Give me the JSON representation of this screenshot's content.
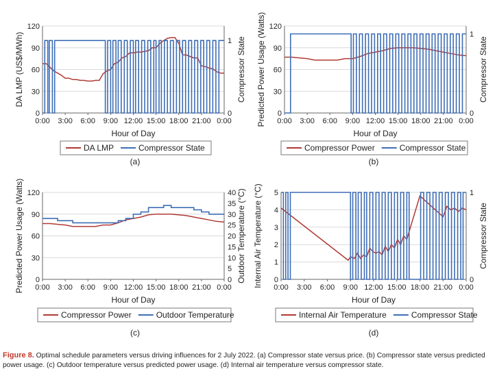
{
  "colors": {
    "red": "#b03a34",
    "blue": "#3d6db5",
    "grid": "#d9d9d9",
    "axis": "#666666"
  },
  "caption": {
    "label": "Figure 8.",
    "text": " Optimal schedule parameters versus driving influences for 2 July 2022. (a) Compressor state versus price. (b) Compressor state versus predicted power usage. (c) Outdoor temperature versus predicted power usage. (d) Internal air temperature versus compressor state."
  },
  "chart_data": [
    {
      "type": "line",
      "panel_label": "(a)",
      "xlabel": "Hour of Day",
      "ylabel": "DA LMP (US$/MWh)",
      "y2label": "Compressor State",
      "x_ticks": [
        "0:00",
        "3:00",
        "6:00",
        "9:00",
        "12:00",
        "15:00",
        "18:00",
        "21:00",
        "0:00"
      ],
      "xlim": [
        0,
        24
      ],
      "ylim": [
        0,
        120
      ],
      "y_ticks": [
        "0",
        "30",
        "60",
        "90",
        "120"
      ],
      "y2lim": [
        0,
        1.2
      ],
      "y2_ticks": [
        {
          "value": 0,
          "label": "0"
        },
        {
          "value": 1,
          "label": "1"
        }
      ],
      "series": [
        {
          "name": "DA LMP",
          "axis": "left",
          "color": "red",
          "x": [
            0,
            0.5,
            1,
            1.5,
            2,
            2.5,
            3,
            3.5,
            4,
            4.5,
            5,
            5.5,
            6,
            6.5,
            7,
            7.5,
            8,
            8.5,
            9,
            9.5,
            10,
            10.5,
            11,
            11.5,
            12,
            12.5,
            13,
            13.5,
            14,
            14.5,
            15,
            15.5,
            16,
            16.5,
            17,
            17.5,
            18,
            18.5,
            19,
            19.5,
            20,
            20.5,
            21,
            21.5,
            22,
            22.5,
            23,
            23.5,
            24
          ],
          "values": [
            68,
            68,
            63,
            58,
            55,
            52,
            48,
            48,
            46,
            46,
            45,
            45,
            44,
            44,
            45,
            45,
            54,
            58,
            60,
            68,
            70,
            76,
            78,
            83,
            83,
            84,
            84,
            85,
            86,
            90,
            90,
            96,
            100,
            103,
            104,
            104,
            96,
            80,
            80,
            78,
            76,
            76,
            65,
            64,
            62,
            61,
            57,
            55,
            55
          ]
        },
        {
          "name": "Compressor State",
          "axis": "right",
          "color": "blue",
          "step": true,
          "x": [
            0,
            0.3,
            0.7,
            0.9,
            1.3,
            1.6,
            2.0,
            8.0,
            8.3,
            8.6,
            9.0,
            9.3,
            9.7,
            10.0,
            10.4,
            10.8,
            11.2,
            11.6,
            12.0,
            12.3,
            12.7,
            13.1,
            13.5,
            13.9,
            14.3,
            14.7,
            15.0,
            15.4,
            15.7,
            16.1,
            16.5,
            16.9,
            17.3,
            17.7,
            18.1,
            18.5,
            18.9,
            19.3,
            19.7,
            20.1,
            20.5,
            20.9,
            21.3,
            21.7,
            22.1,
            22.5,
            22.9,
            23.3,
            24
          ],
          "values": [
            0,
            1,
            0,
            1,
            0,
            1,
            1,
            1,
            0,
            1,
            0,
            1,
            0,
            1,
            0,
            1,
            0,
            1,
            0,
            1,
            0,
            1,
            0,
            1,
            0,
            1,
            0,
            1,
            0,
            1,
            0,
            1,
            0,
            1,
            0,
            1,
            0,
            1,
            0,
            1,
            0,
            1,
            0,
            1,
            0,
            1,
            0,
            1,
            1
          ]
        }
      ]
    },
    {
      "type": "line",
      "panel_label": "(b)",
      "xlabel": "Hour of Day",
      "ylabel": "Predicted Power Usage (Watts)",
      "y2label": "Compressor State",
      "x_ticks": [
        "0:00",
        "3:00",
        "6:00",
        "9:00",
        "12:00",
        "15:00",
        "18:00",
        "21:00",
        "0:00"
      ],
      "xlim": [
        0,
        24
      ],
      "ylim": [
        0,
        120
      ],
      "y_ticks": [
        "0",
        "30",
        "60",
        "90",
        "120"
      ],
      "y2lim": [
        0,
        1.1
      ],
      "y2_ticks": [
        {
          "value": 0,
          "label": "0"
        },
        {
          "value": 1,
          "label": "1"
        }
      ],
      "series": [
        {
          "name": "Compressor Power",
          "axis": "left",
          "color": "red",
          "x": [
            0,
            1,
            2,
            3,
            4,
            5,
            6,
            7,
            8,
            9,
            10,
            11,
            12,
            13,
            14,
            15,
            16,
            17,
            18,
            19,
            20,
            21,
            22,
            23,
            24
          ],
          "values": [
            77,
            77,
            76,
            75,
            73,
            73,
            73,
            73,
            75,
            75,
            78,
            82,
            84,
            86,
            89,
            90,
            90,
            90,
            89,
            88,
            86,
            84,
            82,
            80,
            79
          ]
        },
        {
          "name": "Compressor State",
          "axis": "right",
          "color": "blue",
          "step": true,
          "x": [
            0,
            0.8,
            1.1,
            8.8,
            9.1,
            9.5,
            9.9,
            10.3,
            10.7,
            11.1,
            11.5,
            11.9,
            12.3,
            12.7,
            13.1,
            13.5,
            13.9,
            14.3,
            14.7,
            15.1,
            15.5,
            15.9,
            16.3,
            16.7,
            17.1,
            17.5,
            17.9,
            18.3,
            18.7,
            19.1,
            19.5,
            19.9,
            20.3,
            20.7,
            21.1,
            21.5,
            21.9,
            22.3,
            22.7,
            23.1,
            23.5,
            24
          ],
          "values": [
            0,
            1,
            1,
            0,
            1,
            0,
            1,
            0,
            1,
            0,
            1,
            0,
            1,
            0,
            1,
            0,
            1,
            0,
            1,
            0,
            1,
            0,
            1,
            0,
            1,
            0,
            1,
            0,
            1,
            0,
            1,
            0,
            1,
            0,
            1,
            0,
            1,
            0,
            1,
            0,
            1,
            1
          ]
        }
      ]
    },
    {
      "type": "line",
      "panel_label": "(c)",
      "xlabel": "Hour of Day",
      "ylabel": "Predicted Power Usage (Watts)",
      "y2label": "Outdoor Temperature (°C)",
      "x_ticks": [
        "0:00",
        "3:00",
        "6:00",
        "9:00",
        "12:00",
        "15:00",
        "18:00",
        "21:00",
        "0:00"
      ],
      "xlim": [
        0,
        24
      ],
      "ylim": [
        0,
        120
      ],
      "y_ticks": [
        "0",
        "30",
        "60",
        "90",
        "120"
      ],
      "y2lim": [
        0,
        40
      ],
      "y2_ticks": [
        {
          "value": 0,
          "label": "0"
        },
        {
          "value": 5,
          "label": "5"
        },
        {
          "value": 10,
          "label": "10"
        },
        {
          "value": 15,
          "label": "15"
        },
        {
          "value": 20,
          "label": "20"
        },
        {
          "value": 25,
          "label": "25"
        },
        {
          "value": 30,
          "label": "30"
        },
        {
          "value": 35,
          "label": "35"
        },
        {
          "value": 40,
          "label": "40"
        }
      ],
      "series": [
        {
          "name": "Compressor Power",
          "axis": "left",
          "color": "red",
          "x": [
            0,
            1,
            2,
            3,
            4,
            5,
            6,
            7,
            8,
            9,
            10,
            11,
            12,
            13,
            14,
            15,
            16,
            17,
            18,
            19,
            20,
            21,
            22,
            23,
            24
          ],
          "values": [
            77,
            77,
            76,
            75,
            73,
            73,
            73,
            73,
            75,
            75,
            78,
            82,
            84,
            86,
            89,
            90,
            90,
            90,
            89,
            88,
            86,
            84,
            82,
            80,
            79
          ]
        },
        {
          "name": "Outdoor Temperature",
          "axis": "right",
          "color": "blue",
          "step": true,
          "x": [
            0,
            2,
            4,
            8,
            9,
            10,
            11,
            12,
            13,
            14,
            15,
            16,
            17,
            19,
            20,
            21,
            22,
            24
          ],
          "values": [
            28,
            27,
            26,
            26,
            26,
            27,
            28,
            30,
            31,
            33,
            33,
            34,
            33,
            33,
            32,
            31,
            30,
            30
          ]
        }
      ]
    },
    {
      "type": "line",
      "panel_label": "(d)",
      "xlabel": "Hour of Day",
      "ylabel": "Internal Air Temperature (°C)",
      "y2label": "Compressor State",
      "x_ticks": [
        "0:00",
        "3:00",
        "6:00",
        "9:00",
        "12:00",
        "15:00",
        "18:00",
        "21:00",
        "0:00"
      ],
      "xlim": [
        0,
        24
      ],
      "ylim": [
        0,
        5
      ],
      "y_ticks": [
        "0",
        "1",
        "2",
        "3",
        "4",
        "5"
      ],
      "y2lim": [
        0,
        1
      ],
      "y2_ticks": [
        {
          "value": 0,
          "label": "0"
        },
        {
          "value": 1,
          "label": "1"
        }
      ],
      "series": [
        {
          "name": "Internal Air Temperature",
          "axis": "left",
          "color": "red",
          "x": [
            0,
            8.7,
            9.0,
            9.5,
            9.9,
            10.3,
            10.7,
            11.1,
            11.5,
            11.9,
            12.3,
            12.7,
            13.1,
            13.5,
            13.9,
            14.3,
            14.7,
            15.1,
            15.5,
            15.9,
            16.3,
            18.0,
            21.0,
            21.5,
            22.0,
            22.5,
            23.0,
            23.5,
            24
          ],
          "values": [
            4.1,
            1.1,
            1.3,
            1.2,
            1.5,
            1.2,
            1.4,
            1.3,
            1.8,
            1.6,
            1.5,
            1.6,
            1.4,
            1.9,
            1.6,
            2.0,
            1.8,
            2.3,
            2.0,
            2.5,
            2.3,
            4.8,
            3.6,
            4.2,
            4.0,
            4.1,
            3.9,
            4.1,
            4.0
          ]
        },
        {
          "name": "Compressor State",
          "axis": "right",
          "color": "blue",
          "step": true,
          "x": [
            0,
            0.3,
            0.6,
            0.9,
            1.2,
            8.6,
            9.0,
            9.3,
            9.7,
            10.0,
            10.4,
            10.8,
            11.1,
            11.5,
            11.9,
            12.3,
            12.7,
            13.1,
            13.5,
            13.9,
            14.3,
            14.7,
            15.1,
            15.5,
            15.9,
            16.3,
            16.6,
            17.8,
            18.1,
            18.5,
            18.9,
            19.3,
            19.7,
            20.1,
            20.5,
            20.9,
            21.3,
            21.7,
            22.1,
            22.5,
            22.9,
            23.3,
            23.6,
            24
          ],
          "values": [
            1,
            0,
            1,
            0,
            1,
            1,
            0,
            1,
            0,
            1,
            0,
            1,
            0,
            1,
            0,
            1,
            0,
            1,
            0,
            1,
            0,
            1,
            0,
            1,
            0,
            1,
            0,
            0,
            1,
            0,
            1,
            0,
            1,
            0,
            1,
            0,
            1,
            0,
            1,
            0,
            1,
            0,
            1,
            1
          ]
        }
      ]
    }
  ]
}
